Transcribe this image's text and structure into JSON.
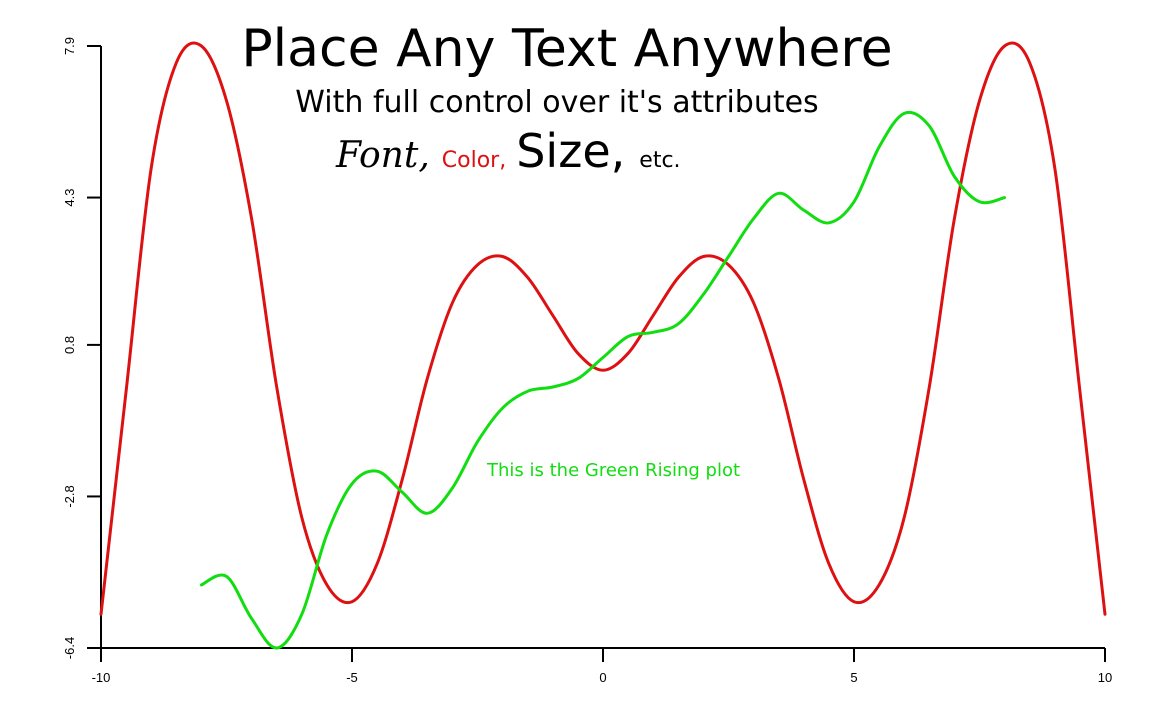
{
  "chart_data": {
    "type": "line",
    "title": "Place Any Text Anywhere",
    "subtitle": "With full control over it's attributes",
    "styled_text": {
      "font": "Font,",
      "color": "Color,",
      "size": "Size,",
      "etc": "etc."
    },
    "annotation": "This is the Green Rising plot",
    "xlim": [
      -10,
      10
    ],
    "ylim": [
      -6.4,
      7.9
    ],
    "x_ticks": [
      -10,
      -5,
      0,
      5,
      10
    ],
    "x_tick_labels": [
      "-10",
      "-5",
      "0",
      "5",
      "10"
    ],
    "y_ticks": [
      -6.4,
      -2.8,
      0.8,
      4.3,
      7.9
    ],
    "y_tick_labels": [
      "-6.4",
      "-2.8",
      "0.8",
      "4.3",
      "7.9"
    ],
    "xlabel": "",
    "ylabel": "",
    "grid": false,
    "colors": {
      "red": "#dd1111",
      "green": "#11dd11",
      "axis": "#000000"
    },
    "series": [
      {
        "color": "#dd1111",
        "x": [
          -10,
          -9.5,
          -9,
          -8.5,
          -8,
          -7.5,
          -7,
          -6.5,
          -6,
          -5.5,
          -5,
          -4.5,
          -4,
          -3.5,
          -3,
          -2.5,
          -2,
          -1.5,
          -1,
          -0.5,
          0,
          0.5,
          1,
          1.5,
          2,
          2.5,
          3,
          3.5,
          4,
          4.5,
          5,
          5.5,
          6,
          6.5,
          7,
          7.5,
          8,
          8.5,
          9,
          9.5,
          10
        ],
        "y": [
          -5.6,
          -0.3,
          5.0,
          7.5,
          7.9,
          6.6,
          3.8,
          -0.2,
          -3.3,
          -4.9,
          -5.3,
          -4.4,
          -2.4,
          0.0,
          1.8,
          2.7,
          2.9,
          2.4,
          1.5,
          0.6,
          0.2,
          0.6,
          1.5,
          2.4,
          2.9,
          2.7,
          1.8,
          0.0,
          -2.4,
          -4.4,
          -5.3,
          -4.9,
          -3.3,
          -0.2,
          3.8,
          6.6,
          7.9,
          7.5,
          5.0,
          -0.3,
          -5.6
        ]
      },
      {
        "color": "#11dd11",
        "x": [
          -8,
          -7.5,
          -7,
          -6.5,
          -6,
          -5.5,
          -5,
          -4.5,
          -4,
          -3.5,
          -3,
          -2.5,
          -2,
          -1.5,
          -1,
          -0.5,
          0,
          0.5,
          1,
          1.5,
          2,
          2.5,
          3,
          3.5,
          4,
          4.5,
          5,
          5.5,
          6,
          6.5,
          7,
          7.5,
          8
        ],
        "y": [
          -4.9,
          -4.7,
          -5.7,
          -6.4,
          -5.6,
          -3.7,
          -2.5,
          -2.2,
          -2.7,
          -3.2,
          -2.6,
          -1.5,
          -0.7,
          -0.3,
          -0.2,
          0.0,
          0.5,
          1.0,
          1.1,
          1.3,
          2.0,
          2.9,
          3.8,
          4.4,
          4.0,
          3.7,
          4.2,
          5.5,
          6.3,
          6.0,
          4.8,
          4.2,
          4.3
        ]
      }
    ]
  }
}
